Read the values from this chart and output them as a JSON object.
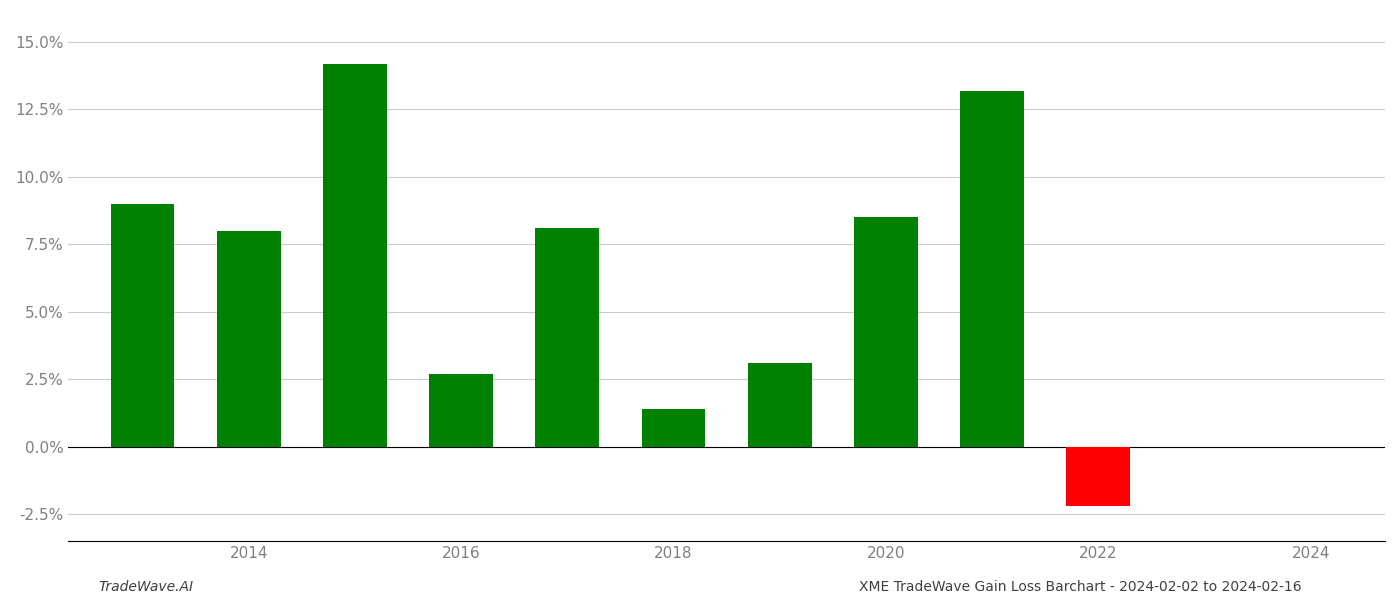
{
  "years": [
    2013,
    2014,
    2015,
    2016,
    2017,
    2018,
    2019,
    2020,
    2021,
    2022,
    2023
  ],
  "values": [
    0.09,
    0.08,
    0.142,
    0.027,
    0.081,
    0.014,
    0.031,
    0.085,
    0.132,
    -0.022,
    0.0
  ],
  "bar_colors": [
    "#008000",
    "#008000",
    "#008000",
    "#008000",
    "#008000",
    "#008000",
    "#008000",
    "#008000",
    "#008000",
    "#ff0000",
    "#ffffff"
  ],
  "yticks": [
    -0.025,
    0.0,
    0.025,
    0.05,
    0.075,
    0.1,
    0.125,
    0.15
  ],
  "ytick_labels": [
    "-2.5%",
    "0.0%",
    "2.5%",
    "5.0%",
    "7.5%",
    "10.0%",
    "12.5%",
    "15.0%"
  ],
  "ylim": [
    -0.035,
    0.16
  ],
  "xlim": [
    2012.3,
    2024.7
  ],
  "xtick_positions": [
    2014,
    2016,
    2018,
    2020,
    2022,
    2024
  ],
  "xlabel": "",
  "ylabel": "",
  "title": "",
  "footer_left": "TradeWave.AI",
  "footer_right": "XME TradeWave Gain Loss Barchart - 2024-02-02 to 2024-02-16",
  "bar_width": 0.6,
  "background_color": "#ffffff",
  "grid_color": "#cccccc",
  "text_color": "#808080",
  "footer_color": "#404040"
}
